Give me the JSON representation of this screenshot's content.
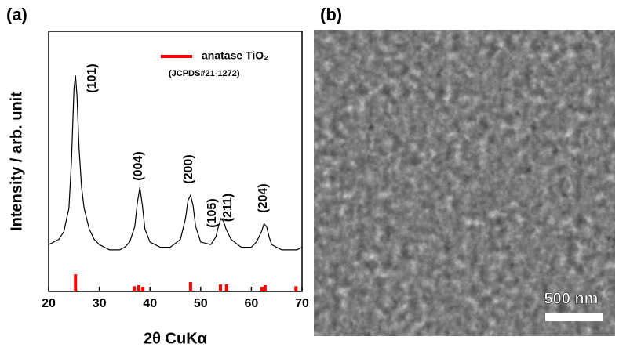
{
  "chart_data": {
    "type": "line",
    "panel_label": "(a)",
    "xlabel": "2θ CuKα",
    "ylabel": "Intensity / arb. unit",
    "xlim": [
      20,
      70
    ],
    "xticks": [
      20,
      30,
      40,
      50,
      60,
      70
    ],
    "ylim": [
      0,
      100
    ],
    "x": [
      20,
      21,
      22,
      23,
      24,
      24.5,
      25,
      25.3,
      25.6,
      26,
      26.5,
      27,
      28,
      29,
      30,
      32,
      34,
      35,
      36,
      37,
      37.5,
      38,
      38.5,
      39,
      40,
      42,
      44,
      46,
      47,
      47.5,
      48,
      48.5,
      49,
      50,
      52,
      53,
      53.5,
      54,
      54.5,
      55,
      55.5,
      56,
      58,
      60,
      61,
      62,
      62.5,
      63,
      63.5,
      64,
      66,
      68,
      69,
      70
    ],
    "series": [
      {
        "color": "#000000",
        "values": [
          18,
          19,
          20,
          23,
          32,
          50,
          78,
          83,
          75,
          55,
          40,
          32,
          24,
          20,
          18,
          16,
          16,
          17,
          19,
          25,
          34,
          40,
          33,
          24,
          19,
          17,
          17,
          20,
          28,
          35,
          37,
          33,
          25,
          19,
          18,
          21,
          25,
          28,
          27,
          24,
          22,
          20,
          17,
          17,
          19,
          23,
          26,
          25,
          21,
          18,
          16,
          16,
          16,
          17
        ]
      }
    ],
    "reference": {
      "name": "anatase TiO₂",
      "note": "(JCPDS#21-1272)",
      "color": "#ff0000",
      "x": [
        25.3,
        36.9,
        37.8,
        38.6,
        48.0,
        53.9,
        55.1,
        62.1,
        62.7,
        68.8
      ],
      "values": [
        6.6,
        2,
        2.4,
        1.8,
        3.6,
        2.7,
        2.7,
        1.8,
        2.4,
        2
      ]
    },
    "annotations": [
      "(101)",
      "(004)",
      "(200)",
      "(105)",
      "(211)",
      "(204)"
    ]
  },
  "image_panel": {
    "panel_label": "(b)",
    "scale_bar": "500 nm"
  }
}
